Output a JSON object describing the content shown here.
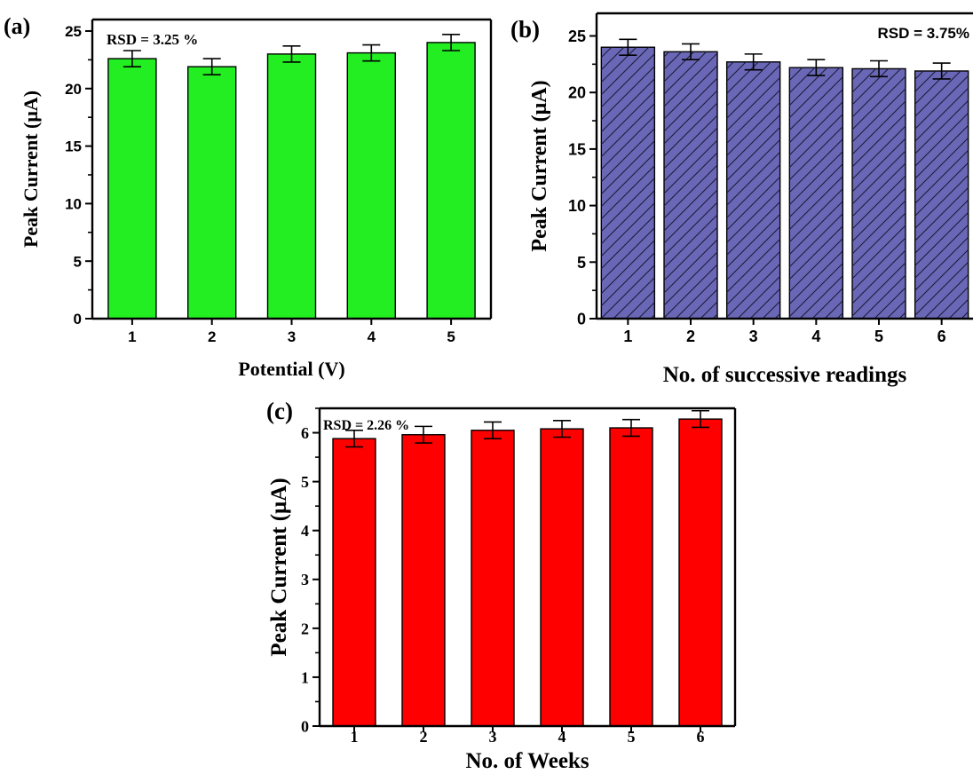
{
  "chart_data": [
    {
      "panel_label": "(a)",
      "type": "bar",
      "categories": [
        "1",
        "2",
        "3",
        "4",
        "5"
      ],
      "values": [
        22.6,
        21.9,
        23.0,
        23.1,
        24.0
      ],
      "errors": [
        0.7,
        0.7,
        0.7,
        0.7,
        0.7
      ],
      "xlabel": "Potential (V)",
      "ylabel": "Peak Current (μA)",
      "ylim": [
        0,
        26
      ],
      "yticks": [
        0,
        5,
        10,
        15,
        20,
        25
      ],
      "annotation": "RSD = 3.25 %",
      "bar_color": "#22ee22",
      "pattern": "none",
      "grid": false
    },
    {
      "panel_label": "(b)",
      "type": "bar",
      "categories": [
        "1",
        "2",
        "3",
        "4",
        "5",
        "6"
      ],
      "values": [
        24.0,
        23.6,
        22.7,
        22.2,
        22.1,
        21.9
      ],
      "errors": [
        0.7,
        0.7,
        0.7,
        0.7,
        0.7,
        0.7
      ],
      "xlabel": "No. of successive readings",
      "ylabel": "Peak Current (μA)",
      "ylim": [
        0,
        27
      ],
      "yticks": [
        0,
        5,
        10,
        15,
        20,
        25
      ],
      "annotation": "RSD = 3.75%",
      "bar_color": "#6a68b6",
      "pattern": "diagonal-hatch",
      "grid": false
    },
    {
      "panel_label": "(c)",
      "type": "bar",
      "categories": [
        "1",
        "2",
        "3",
        "4",
        "5",
        "6"
      ],
      "values": [
        5.88,
        5.96,
        6.05,
        6.08,
        6.1,
        6.28
      ],
      "errors": [
        0.17,
        0.17,
        0.17,
        0.17,
        0.17,
        0.17
      ],
      "xlabel": "No. of Weeks",
      "ylabel": "Peak Current (μA)",
      "ylim": [
        0,
        6.5
      ],
      "yticks": [
        0,
        1,
        2,
        3,
        4,
        5,
        6
      ],
      "annotation": "RSD = 2.26 %",
      "bar_color": "#ff0000",
      "pattern": "none",
      "grid": false
    }
  ]
}
